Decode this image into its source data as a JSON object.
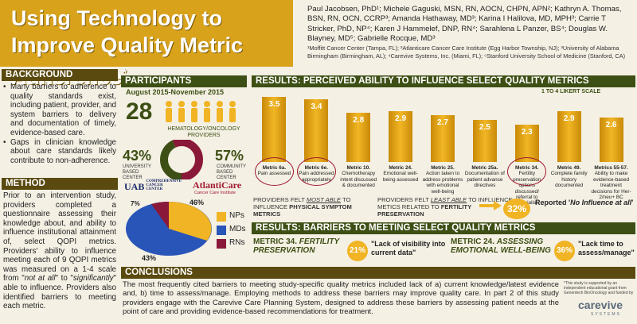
{
  "title": "Using Technology to Improve Quality Metric Adherence",
  "title_mark": "*",
  "authors": "Paul Jacobsen, PhD¹; Michele Gaguski, MSN, RN, AOCN, CHPN, APN²; Kathryn A. Thomas, BSN, RN, OCN, CCRP³; Amanda Hathaway, MD³; Karina I Halilova, MD, MPH³; Carrie T Stricker, PhD, NP⁴; Karen J Hammelef, DNP, RN⁴; Sarahlena L Panzer, BS⁴; Douglas W. Blayney, MD⁵; Gabrielle Rocque, MD³",
  "affiliations": "¹Moffitt Cancer Center (Tampa, FL); ²Atlanticare Cancer Care Institute (Egg Harbor Township, NJ); ³University of Alabama Birmingham (Birmingham, AL); ⁴Carevive Systems, Inc. (Miami, FL); ⁵Stanford University School of Medicine (Stanford, CA)",
  "background": {
    "heading": "BACKGROUND",
    "bullets": [
      "Many barriers to adherence to quality standards exist, including patient, provider, and system barriers to delivery and documentation of timely, evidence-based care.",
      "Gaps in clinician knowledge about care standards likely contribute to non-adherence."
    ]
  },
  "method": {
    "heading": "METHOD",
    "text_a": "Prior to an intervention study, providers completed a questionnaire assessing their knowledge about, and ability to influence institutional attainment of, select QOPI metrics. Providers' ability to influence meeting each of 9 QOPI metrics was measured on a 1-4 scale from \"",
    "em1": "not at all",
    "text_b": "\" to \"",
    "em2": "significantly",
    "text_c": "\" able to influence. Providers also identified barriers to meeting each metric."
  },
  "participants": {
    "heading": "PARTICIPANTS",
    "date_range": "August 2015-November 2015",
    "count": "28",
    "count_label": "HEMATOLOGY/ONCOLOGY PROVIDERS",
    "univ_pct": "43%",
    "univ_label": "UNIVERSITY BASED CENTER",
    "comm_pct": "57%",
    "comm_label": "COMMUNITY BASED CENTER",
    "logo_uab": "UAB",
    "logo_uab_sub": "COMPREHENSIVE CANCER CENTER",
    "logo_atl": "AtlantiCare",
    "logo_atl_sub": "Cancer Care Institute",
    "pie_labels": [
      "7%",
      "46%",
      "43%"
    ],
    "legend": [
      "NPs",
      "MDs",
      "RNs"
    ],
    "colors": {
      "gold": "#f0b424",
      "blue": "#2a55b8",
      "maroon": "#8a1838"
    }
  },
  "results1": {
    "heading": "RESULTS: PERCEIVED ABILITY TO INFLUENCE SELECT QUALITY METRICS",
    "scale_note": "1 TO 4 LIKERT SCALE",
    "most_note_a": "PROVIDERS FELT ",
    "most_note_em": "MOST ABLE",
    "most_note_b": " TO INFLUENCE ",
    "most_note_strong": "PHYSICAL SYMPTOM METRICS",
    "least_note_a": "PROVIDERS FELT ",
    "least_note_em": "LEAST ABLE",
    "least_note_b": " TO INFLUENCE METICS RELATED TO ",
    "least_note_strong": "FERTILITY PRESERVATION",
    "badge_pct": "32%",
    "badge_text_a": "Reported '",
    "badge_text_em": "No Influence at all",
    "badge_text_b": "'"
  },
  "chart_data": {
    "type": "bar",
    "categories": [
      "Metric 6a.",
      "Metric 6e.",
      "Metric 10.",
      "Metric 24.",
      "Metric 25.",
      "Metric 25a.",
      "Metric 34.",
      "Metric 49.",
      "Metrics 55-57."
    ],
    "descriptions": [
      "Pain assessed",
      "Pain addressed appropriately",
      "Chemotherapy intent discussed & documented",
      "Emotional well-being assessed",
      "Action taken to address problems with emotional well-being",
      "Documentation of patient advance directives",
      "Fertility preservation options discussed/ referral to specialist",
      "Complete family history documented",
      "Ability to make evidence-based treatment decisions for Her-2/neu+ BC"
    ],
    "values": [
      3.5,
      3.4,
      2.8,
      2.9,
      2.7,
      2.5,
      2.3,
      2.9,
      2.6
    ],
    "value_labels": [
      "3.5",
      "3.4",
      "2.8",
      "2.9",
      "2.7",
      "2.5",
      "2.3",
      "2.9",
      "2.6"
    ],
    "ylim": [
      1,
      4
    ],
    "highlighted": [
      0,
      1,
      6
    ]
  },
  "results2": {
    "heading": "RESULTS: BARRIERS TO MEETING SELECT QUALITY METRICS",
    "m34_title_a": "METRIC 34. ",
    "m34_title_b": "FERTILITY PRESERVATION",
    "m34_pct": "21%",
    "m34_quote": "\"Lack of visibility into current data\"",
    "m24_title_a": "METRIC 24. ",
    "m24_title_b": "ASSESSING EMOTIONAL WELL-BEING",
    "m24_pct": "36%",
    "m24_quote": "\"Lack time to assess/manage\""
  },
  "conclusions": {
    "heading": "CONCLUSIONS",
    "text": "The most frequently cited barriers to meeting study-specific quality metrics included lack of a) current knowledge/latest evidence and, b) time to assess/manage. Employing methods to address these barriers may improve quality care. In part 2 of this study providers engage with the Carevive Care Planning System, designed to address these barriers by assessing patient needs at the point of care and providing evidence-based recommendations for treatment.",
    "footnote": "*This study is supported by an independent educational grant from Genentech BioOncology and funded by",
    "logo": "carevive",
    "logo_sub": "SYSTEMS"
  }
}
